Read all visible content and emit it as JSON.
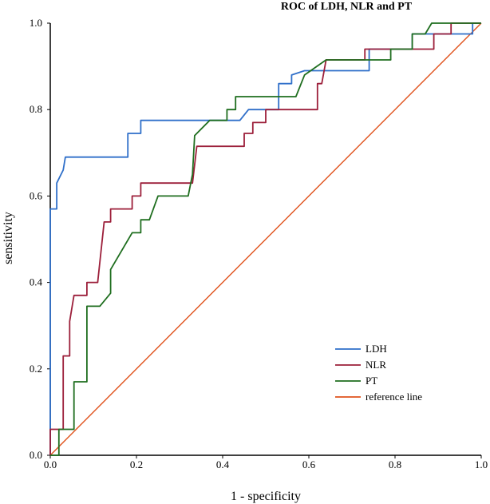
{
  "chart_data": {
    "type": "line",
    "title": "ROC of LDH, NLR and PT",
    "xlabel": "1 - specificity",
    "ylabel": "sensitivity",
    "xlim": [
      0,
      1
    ],
    "ylim": [
      0,
      1
    ],
    "x_ticks": [
      "0.0",
      "0.2",
      "0.4",
      "0.6",
      "0.8",
      "1.0"
    ],
    "y_ticks": [
      "0.0",
      "0.2",
      "0.4",
      "0.6",
      "0.8",
      "1.0"
    ],
    "grid": false,
    "legend_position": "bottom-right",
    "series": [
      {
        "name": "LDH",
        "color": "#2f6fc9",
        "points": [
          [
            0,
            0
          ],
          [
            0,
            0.57
          ],
          [
            0.015,
            0.57
          ],
          [
            0.015,
            0.63
          ],
          [
            0.03,
            0.66
          ],
          [
            0.035,
            0.69
          ],
          [
            0.18,
            0.69
          ],
          [
            0.18,
            0.745
          ],
          [
            0.21,
            0.745
          ],
          [
            0.21,
            0.775
          ],
          [
            0.44,
            0.775
          ],
          [
            0.46,
            0.8
          ],
          [
            0.53,
            0.8
          ],
          [
            0.53,
            0.86
          ],
          [
            0.56,
            0.86
          ],
          [
            0.56,
            0.88
          ],
          [
            0.59,
            0.89
          ],
          [
            0.74,
            0.89
          ],
          [
            0.74,
            0.94
          ],
          [
            0.84,
            0.94
          ],
          [
            0.84,
            0.975
          ],
          [
            0.98,
            0.975
          ],
          [
            0.98,
            1.0
          ],
          [
            1.0,
            1.0
          ]
        ]
      },
      {
        "name": "NLR",
        "color": "#9c1f3a",
        "points": [
          [
            0,
            0
          ],
          [
            0,
            0.06
          ],
          [
            0.03,
            0.06
          ],
          [
            0.03,
            0.23
          ],
          [
            0.045,
            0.23
          ],
          [
            0.045,
            0.31
          ],
          [
            0.055,
            0.37
          ],
          [
            0.085,
            0.37
          ],
          [
            0.085,
            0.4
          ],
          [
            0.11,
            0.4
          ],
          [
            0.125,
            0.54
          ],
          [
            0.14,
            0.54
          ],
          [
            0.14,
            0.57
          ],
          [
            0.19,
            0.57
          ],
          [
            0.19,
            0.6
          ],
          [
            0.21,
            0.6
          ],
          [
            0.21,
            0.63
          ],
          [
            0.33,
            0.63
          ],
          [
            0.34,
            0.715
          ],
          [
            0.45,
            0.715
          ],
          [
            0.45,
            0.745
          ],
          [
            0.47,
            0.745
          ],
          [
            0.47,
            0.77
          ],
          [
            0.5,
            0.77
          ],
          [
            0.5,
            0.8
          ],
          [
            0.62,
            0.8
          ],
          [
            0.62,
            0.86
          ],
          [
            0.63,
            0.86
          ],
          [
            0.64,
            0.915
          ],
          [
            0.73,
            0.915
          ],
          [
            0.73,
            0.94
          ],
          [
            0.89,
            0.94
          ],
          [
            0.89,
            0.975
          ],
          [
            0.93,
            0.975
          ],
          [
            0.93,
            1.0
          ],
          [
            1.0,
            1.0
          ]
        ]
      },
      {
        "name": "PT",
        "color": "#1f6e1f",
        "points": [
          [
            0,
            0
          ],
          [
            0.02,
            0
          ],
          [
            0.02,
            0.06
          ],
          [
            0.055,
            0.06
          ],
          [
            0.055,
            0.17
          ],
          [
            0.085,
            0.17
          ],
          [
            0.085,
            0.345
          ],
          [
            0.115,
            0.345
          ],
          [
            0.14,
            0.375
          ],
          [
            0.14,
            0.43
          ],
          [
            0.19,
            0.515
          ],
          [
            0.21,
            0.515
          ],
          [
            0.21,
            0.545
          ],
          [
            0.23,
            0.545
          ],
          [
            0.25,
            0.6
          ],
          [
            0.32,
            0.6
          ],
          [
            0.33,
            0.65
          ],
          [
            0.335,
            0.74
          ],
          [
            0.37,
            0.775
          ],
          [
            0.41,
            0.775
          ],
          [
            0.41,
            0.8
          ],
          [
            0.43,
            0.8
          ],
          [
            0.43,
            0.83
          ],
          [
            0.57,
            0.83
          ],
          [
            0.59,
            0.88
          ],
          [
            0.64,
            0.915
          ],
          [
            0.79,
            0.915
          ],
          [
            0.79,
            0.94
          ],
          [
            0.84,
            0.94
          ],
          [
            0.84,
            0.975
          ],
          [
            0.87,
            0.975
          ],
          [
            0.885,
            1.0
          ],
          [
            1.0,
            1.0
          ]
        ]
      },
      {
        "name": "reference line",
        "color": "#e0521c",
        "points": [
          [
            0,
            0
          ],
          [
            1,
            1
          ]
        ]
      }
    ]
  }
}
